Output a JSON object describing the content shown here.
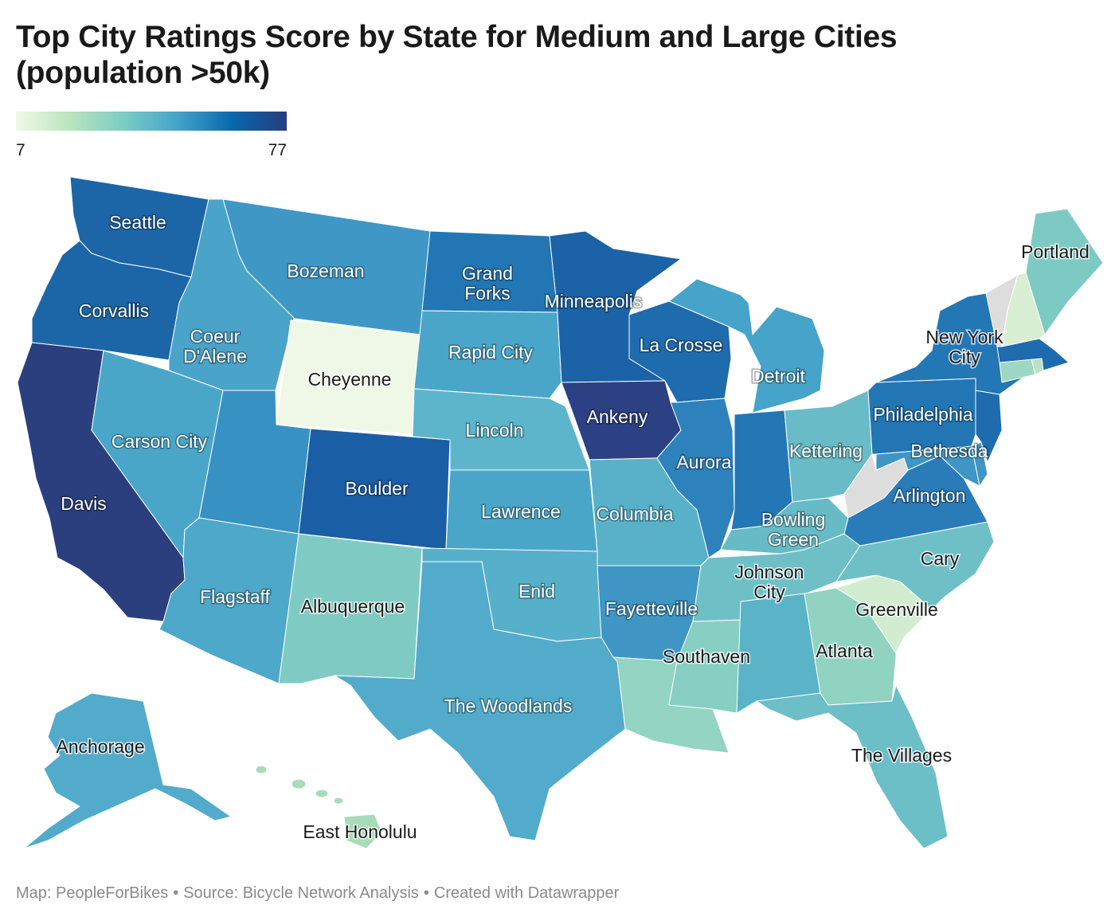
{
  "title": "Top City Ratings Score by State for Medium and Large Cities (population >50k)",
  "legend": {
    "min_label": "7",
    "max_label": "77",
    "gradient": [
      "#f0f9e8",
      "#bae4bc",
      "#7bccc4",
      "#43a2ca",
      "#0868ac",
      "#253c7f"
    ]
  },
  "no_data_color": "#dddddd",
  "footer": {
    "map_credit": "Map: PeopleForBikes",
    "source": "Source: Bicycle Network Analysis",
    "tool": "Created with Datawrapper",
    "separator": "•"
  },
  "colors": {
    "WA": "#1c66a8",
    "OR": "#1c66a8",
    "CA": "#2b3f7e",
    "ID": "#4aa3c9",
    "MT": "#3f97c6",
    "WY": "#eff8e6",
    "NV": "#4aa6c9",
    "UT": "#3891c3",
    "AZ": "#4ea8ca",
    "CO": "#1a5ea5",
    "NM": "#7fcbc3",
    "ND": "#2376b4",
    "SD": "#4aa6c9",
    "NE": "#5db5cb",
    "KS": "#4aa6c9",
    "OK": "#57b0c9",
    "TX": "#52abca",
    "MN": "#1c62a6",
    "IA": "#2b4184",
    "MO": "#59b1c9",
    "AR": "#3f96c4",
    "LA": "#93d4c3",
    "WI": "#1e6bae",
    "IL": "#2e82bc",
    "MS": "#86cfc2",
    "MI": "#46a3c9",
    "IN": "#2377b5",
    "OH": "#69bcc7",
    "KY": "#67bbc7",
    "TN": "#6ec0c6",
    "AL": "#5bb3c8",
    "GA": "#90d3c1",
    "FL": "#6cbec7",
    "SC": "#d2ecd0",
    "NC": "#6ec0c6",
    "VA": "#2a7cb8",
    "WV": "#dddddd",
    "MD": "#3f96c4",
    "DE": "#3f96c4",
    "PA": "#2376b4",
    "NJ": "#1e6bae",
    "NY": "#2377b5",
    "CT": "#9fd8c2",
    "RI": "#b9e3c1",
    "MA": "#1e6bae",
    "VT": "#dddddd",
    "NH": "#d9efd3",
    "ME": "#7ccac3",
    "AK": "#52abca",
    "HI": "#a8dcb8"
  },
  "cities": [
    {
      "state": "WA",
      "name": [
        "Seattle"
      ],
      "color": "white"
    },
    {
      "state": "OR",
      "name": [
        "Corvallis"
      ],
      "color": "white"
    },
    {
      "state": "CA",
      "name": [
        "Davis"
      ],
      "color": "white"
    },
    {
      "state": "ID",
      "name": [
        "Coeur",
        "D'Alene"
      ],
      "color": "white"
    },
    {
      "state": "MT",
      "name": [
        "Bozeman"
      ],
      "color": "white"
    },
    {
      "state": "WY",
      "name": [
        "Cheyenne"
      ],
      "color": "dark"
    },
    {
      "state": "NV",
      "name": [
        "Carson City"
      ],
      "color": "white"
    },
    {
      "state": "UT_CO",
      "name": [
        "Boulder"
      ],
      "color": "white"
    },
    {
      "state": "AZ",
      "name": [
        "Flagstaff"
      ],
      "color": "white"
    },
    {
      "state": "NM",
      "name": [
        "Albuquerque"
      ],
      "color": "dark"
    },
    {
      "state": "ND",
      "name": [
        "Grand",
        "Forks"
      ],
      "color": "white"
    },
    {
      "state": "SD",
      "name": [
        "Rapid City"
      ],
      "color": "white"
    },
    {
      "state": "NE",
      "name": [
        "Lincoln"
      ],
      "color": "white"
    },
    {
      "state": "KS",
      "name": [
        "Lawrence"
      ],
      "color": "white"
    },
    {
      "state": "OK",
      "name": [
        "Enid"
      ],
      "color": "white"
    },
    {
      "state": "TX",
      "name": [
        "The Woodlands"
      ],
      "color": "white"
    },
    {
      "state": "MN",
      "name": [
        "Minneapolis"
      ],
      "color": "white"
    },
    {
      "state": "IA",
      "name": [
        "Ankeny"
      ],
      "color": "white"
    },
    {
      "state": "MO",
      "name": [
        "Columbia"
      ],
      "color": "white"
    },
    {
      "state": "AR",
      "name": [
        "Fayetteville"
      ],
      "color": "white"
    },
    {
      "state": "MS",
      "name": [
        "Southaven"
      ],
      "color": "dark"
    },
    {
      "state": "WI",
      "name": [
        "La Crosse"
      ],
      "color": "white"
    },
    {
      "state": "IL",
      "name": [
        "Aurora"
      ],
      "color": "white"
    },
    {
      "state": "MI",
      "name": [
        "Detroit"
      ],
      "color": "white"
    },
    {
      "state": "OH",
      "name": [
        "Kettering"
      ],
      "color": "white"
    },
    {
      "state": "KY",
      "name": [
        "Bowling",
        "Green"
      ],
      "color": "white"
    },
    {
      "state": "TN",
      "name": [
        "Johnson",
        "City"
      ],
      "color": "dark"
    },
    {
      "state": "GA",
      "name": [
        "Atlanta"
      ],
      "color": "dark"
    },
    {
      "state": "FL",
      "name": [
        "The Villages"
      ],
      "color": "dark"
    },
    {
      "state": "SC",
      "name": [
        "Greenville"
      ],
      "color": "dark"
    },
    {
      "state": "NC",
      "name": [
        "Cary"
      ],
      "color": "dark"
    },
    {
      "state": "VA",
      "name": [
        "Arlington"
      ],
      "color": "white"
    },
    {
      "state": "MD",
      "name": [
        "Bethesda"
      ],
      "color": "white"
    },
    {
      "state": "PA",
      "name": [
        "Philadelphia"
      ],
      "color": "white"
    },
    {
      "state": "NY",
      "name": [
        "New York",
        "City"
      ],
      "color": "dark"
    },
    {
      "state": "ME",
      "name": [
        "Portland"
      ],
      "color": "dark"
    },
    {
      "state": "AK",
      "name": [
        "Anchorage"
      ],
      "color": "dark"
    },
    {
      "state": "HI",
      "name": [
        "East Honolulu"
      ],
      "color": "dark"
    }
  ]
}
